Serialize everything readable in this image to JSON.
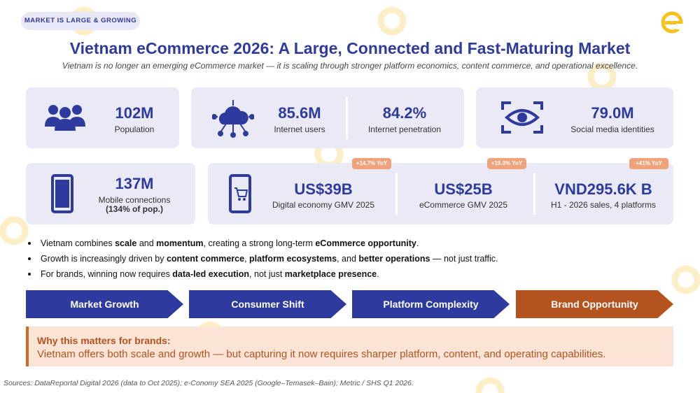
{
  "tag": "MARKET IS LARGE & GROWING",
  "title": "Vietnam eCommerce 2026: A Large, Connected and Fast-Maturing Market",
  "subtitle": "Vietnam is no longer an emerging eCommerce market — it is scaling through stronger platform economics, content commerce, and operational excellence.",
  "stats_row1": [
    {
      "value": "102M",
      "label": "Population"
    },
    {
      "value": "85.6M",
      "label": "Internet users"
    },
    {
      "value": "84.2%",
      "label": "Internet penetration"
    },
    {
      "value": "79.0M",
      "label": "Social media identities"
    }
  ],
  "mobile": {
    "value": "137M",
    "label": "Mobile connections",
    "note": "(134% of pop.)"
  },
  "stats_row2": [
    {
      "badge": "+14.7% YoY",
      "value": "US$39B",
      "label": "Digital economy GMV 2025"
    },
    {
      "badge": "+19.0% YoY",
      "value": "US$25B",
      "label": "eCommerce GMV 2025"
    },
    {
      "badge": "+41% YoY",
      "value": "VND295.6K B",
      "label": "H1 - 2026 sales, 4 platforms"
    }
  ],
  "bullets": [
    [
      {
        "text": "Vietnam combines ",
        "bold": false
      },
      {
        "text": "scale",
        "bold": true
      },
      {
        "text": " and ",
        "bold": false
      },
      {
        "text": "momentum",
        "bold": true
      },
      {
        "text": ", creating a strong long-term ",
        "bold": false
      },
      {
        "text": "eCommerce opportunity",
        "bold": true
      },
      {
        "text": ".",
        "bold": false
      }
    ],
    [
      {
        "text": "Growth is increasingly driven by ",
        "bold": false
      },
      {
        "text": "content commerce",
        "bold": true
      },
      {
        "text": ", ",
        "bold": false
      },
      {
        "text": "platform ecosystems",
        "bold": true
      },
      {
        "text": ", and ",
        "bold": false
      },
      {
        "text": "better operations",
        "bold": true
      },
      {
        "text": " — not just traffic.",
        "bold": false
      }
    ],
    [
      {
        "text": "For brands, winning now requires ",
        "bold": false
      },
      {
        "text": "data-led execution",
        "bold": true
      },
      {
        "text": ", not just ",
        "bold": false
      },
      {
        "text": "marketplace presence",
        "bold": true
      },
      {
        "text": ".",
        "bold": false
      }
    ]
  ],
  "steps": [
    "Market Growth",
    "Consumer Shift",
    "Platform Complexity",
    "Brand Opportunity"
  ],
  "callout": {
    "heading": "Why this matters for brands:",
    "body": "Vietnam offers both scale and growth — but capturing it now requires sharper platform, content, and operating capabilities."
  },
  "sources": "Sources: DataReportal Digital 2026 (data to Oct 2025); e-Conomy SEA 2025 (Google–Temasek–Bain); Metric / SHS Q1 2026."
}
